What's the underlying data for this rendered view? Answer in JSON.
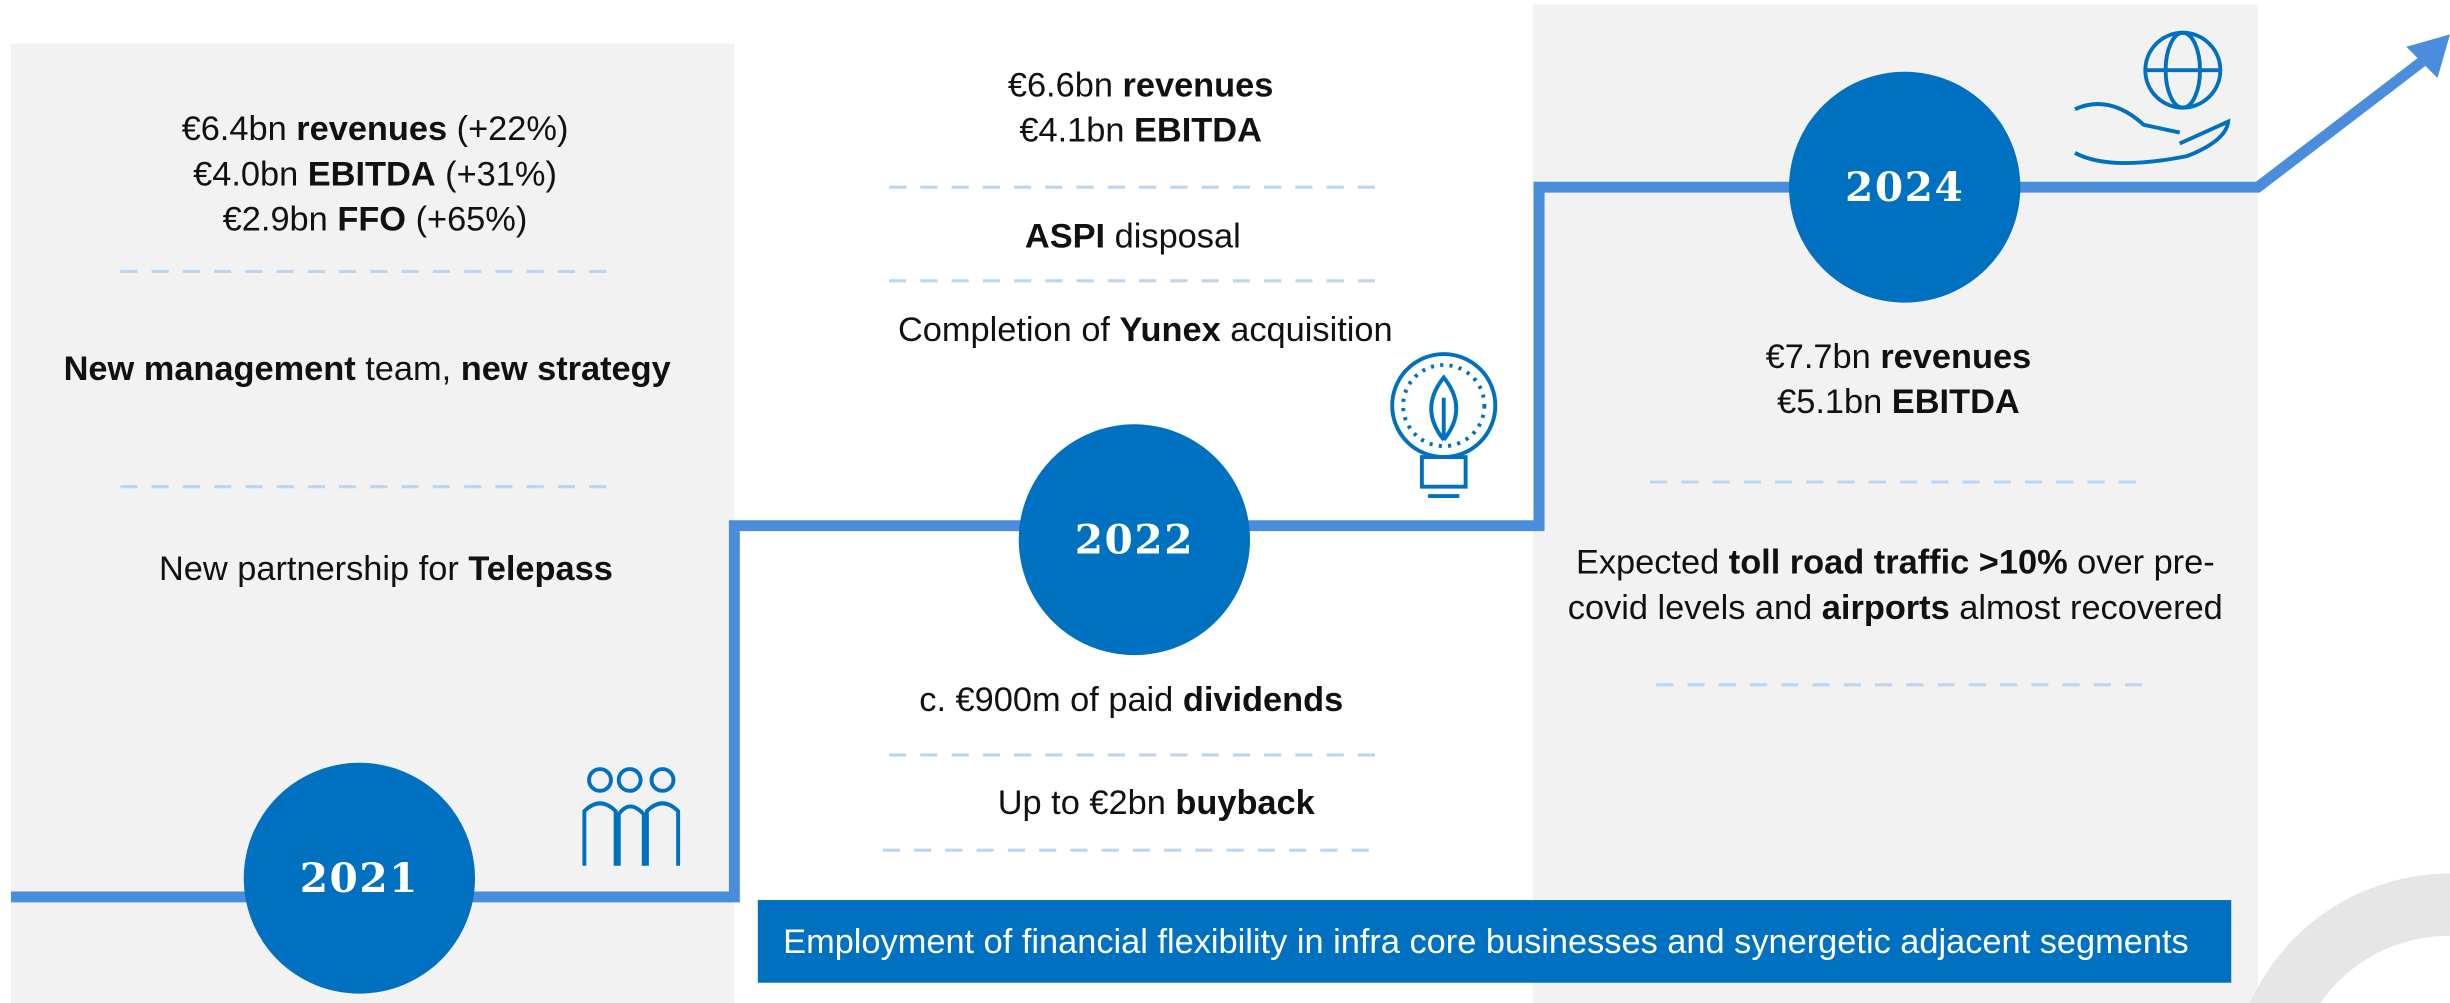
{
  "years": [
    "2021",
    "2022",
    "2024"
  ],
  "banner": "Employment of financial flexibility in infra core businesses and synergetic adjacent segments",
  "texts": [
    [
      {
        "t": "€6.4bn "
      },
      {
        "t": "revenues",
        "b": true
      },
      {
        "t": " (+22%)"
      }
    ],
    [
      {
        "t": "€4.0bn "
      },
      {
        "t": "EBITDA",
        "b": true
      },
      {
        "t": " (+31%)"
      }
    ],
    [
      {
        "t": "€2.9bn "
      },
      {
        "t": "FFO",
        "b": true
      },
      {
        "t": " (+65%)"
      }
    ],
    [
      {
        "t": "New management",
        "b": true
      },
      {
        "t": " team, "
      },
      {
        "t": "new strategy",
        "b": true
      }
    ],
    [
      {
        "t": "New partnership for "
      },
      {
        "t": "Telepass",
        "b": true
      }
    ],
    [
      {
        "t": "€6.6bn "
      },
      {
        "t": "revenues",
        "b": true
      }
    ],
    [
      {
        "t": "€4.1bn "
      },
      {
        "t": "EBITDA",
        "b": true
      }
    ],
    [
      {
        "t": "ASPI",
        "b": true
      },
      {
        "t": " disposal"
      }
    ],
    [
      {
        "t": "Completion of "
      },
      {
        "t": "Yunex",
        "b": true
      },
      {
        "t": " acquisition"
      }
    ],
    [
      {
        "t": "c. €900m of paid "
      },
      {
        "t": "dividends",
        "b": true
      }
    ],
    [
      {
        "t": "Up to €2bn "
      },
      {
        "t": "buyback",
        "b": true
      }
    ],
    [
      {
        "t": "€7.7bn "
      },
      {
        "t": "revenues",
        "b": true
      }
    ],
    [
      {
        "t": "€5.1bn "
      },
      {
        "t": "EBITDA",
        "b": true
      }
    ],
    [
      {
        "t": "Expected "
      },
      {
        "t": "toll road traffic >10%",
        "b": true
      },
      {
        "t": " over pre-"
      }
    ],
    [
      {
        "t": "covid levels and "
      },
      {
        "t": "airports",
        "b": true
      },
      {
        "t": " almost recovered"
      }
    ]
  ]
}
